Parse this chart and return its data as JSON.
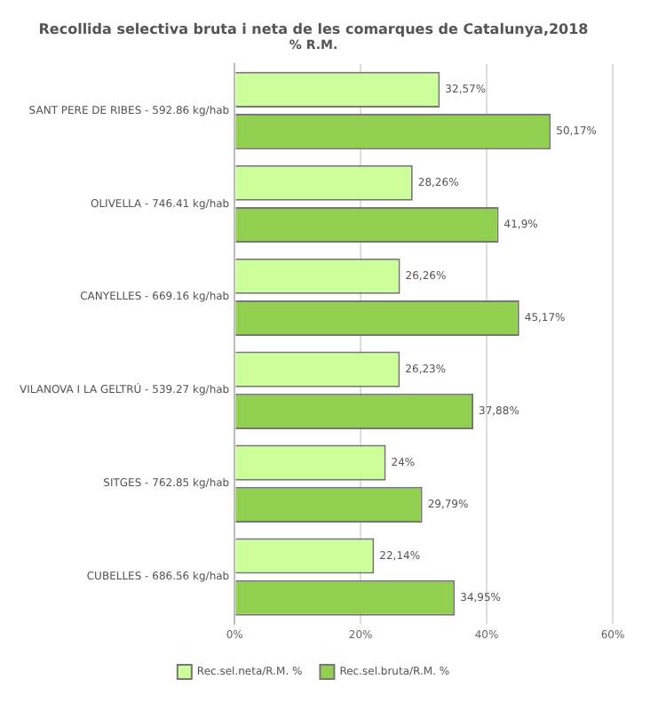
{
  "chart_data": {
    "type": "bar",
    "orientation": "horizontal",
    "title": "Recollida selectiva bruta i neta de les comarques de Catalunya,2018",
    "subtitle": "% R.M.",
    "categories": [
      "SANT PERE DE RIBES - 592.86 kg/hab",
      "OLIVELLA - 746.41 kg/hab",
      "CANYELLES - 669.16 kg/hab",
      "VILANOVA I LA GELTRÚ - 539.27 kg/hab",
      "SITGES - 762.85 kg/hab",
      "CUBELLES - 686.56 kg/hab"
    ],
    "series": [
      {
        "name": "Rec.sel.neta/R.M. %",
        "color": "#ccff99",
        "values": [
          32.57,
          28.26,
          26.26,
          26.23,
          24,
          22.14
        ],
        "value_labels": [
          "32,57%",
          "28,26%",
          "26,26%",
          "26,23%",
          "24%",
          "22,14%"
        ]
      },
      {
        "name": "Rec.sel.bruta/R.M. %",
        "color": "#92d050",
        "values": [
          50.17,
          41.9,
          45.17,
          37.88,
          29.79,
          34.95
        ],
        "value_labels": [
          "50,17%",
          "41,9%",
          "45,17%",
          "37,88%",
          "29,79%",
          "34,95%"
        ]
      }
    ],
    "xlim": [
      0,
      60
    ],
    "xticks": [
      {
        "value": 0,
        "label": "0%"
      },
      {
        "value": 20,
        "label": "20%"
      },
      {
        "value": 40,
        "label": "40%"
      },
      {
        "value": 60,
        "label": "60%"
      }
    ],
    "grid": "x",
    "legend": "bottom"
  }
}
